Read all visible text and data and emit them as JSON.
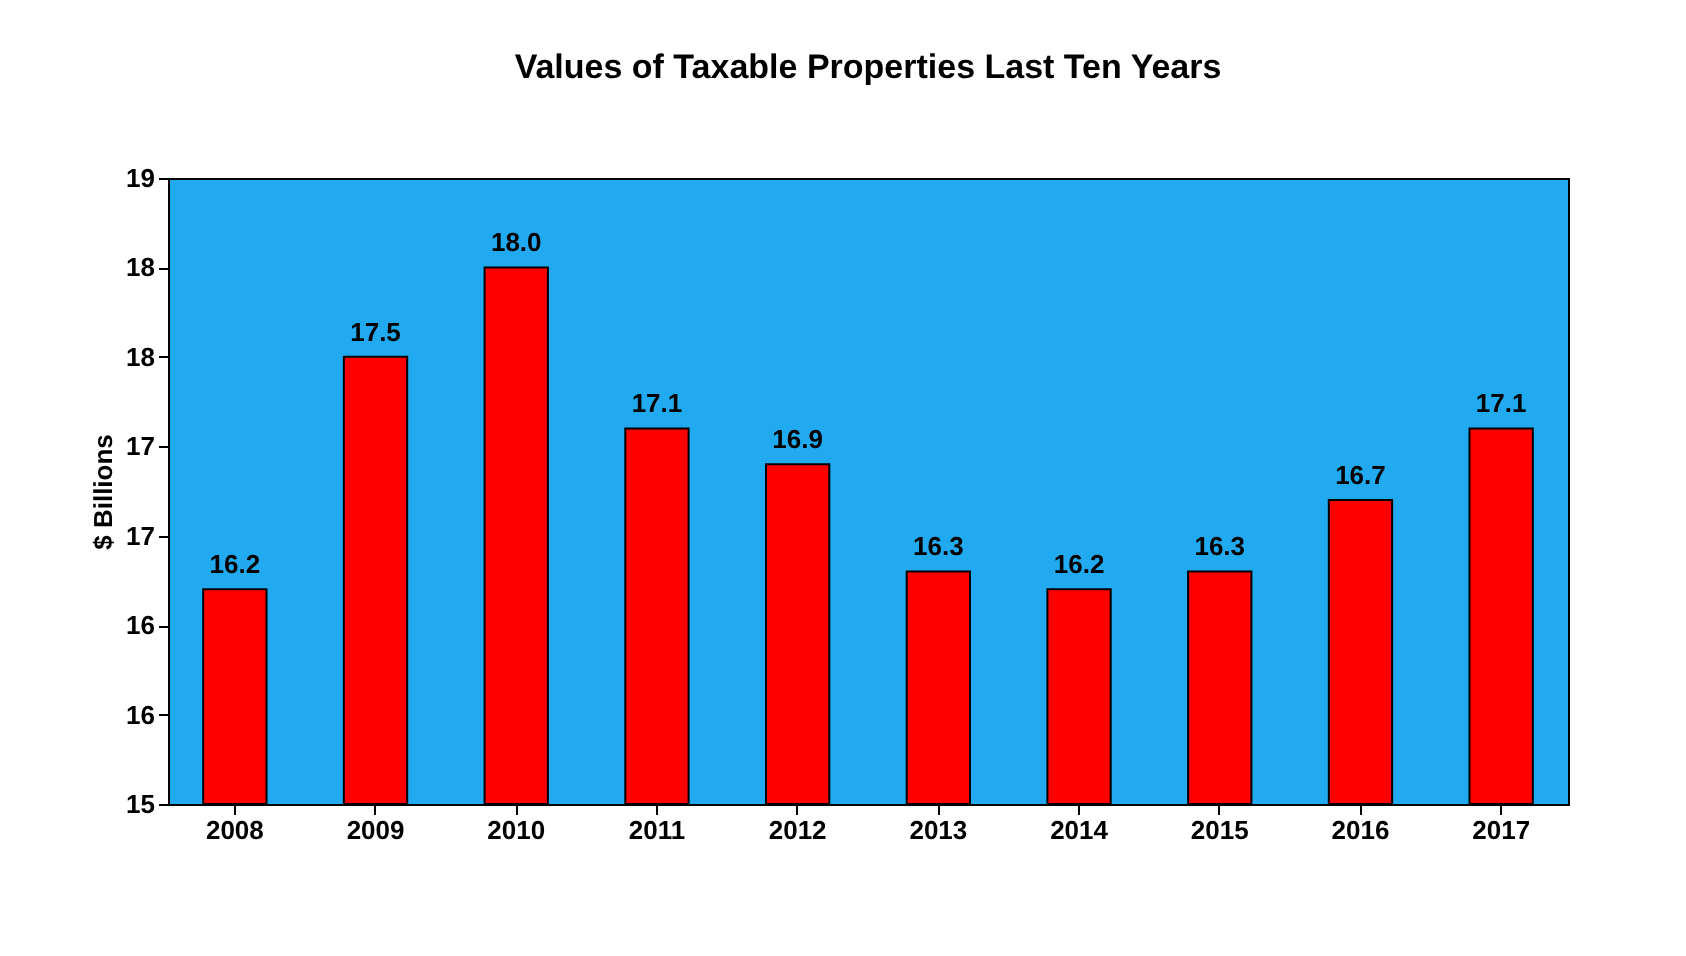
{
  "chart_data": {
    "type": "bar",
    "title": "Values of Taxable Properties Last Ten Years",
    "ylabel": "$ Billions",
    "categories": [
      "2008",
      "2009",
      "2010",
      "2011",
      "2012",
      "2013",
      "2014",
      "2015",
      "2016",
      "2017"
    ],
    "values": [
      16.2,
      17.5,
      18.0,
      17.1,
      16.9,
      16.3,
      16.2,
      16.3,
      16.7,
      17.1
    ],
    "color": "#ff0000",
    "value_labels": [
      "16.2",
      "17.5",
      "18.0",
      "17.1",
      "16.9",
      "16.3",
      "16.2",
      "16.3",
      "16.7",
      "17.1"
    ],
    "ylim": [
      15,
      18.5
    ],
    "yticks": [
      {
        "value": 15,
        "label": "15"
      },
      {
        "value": 15.5,
        "label": "16"
      },
      {
        "value": 16,
        "label": "16"
      },
      {
        "value": 16.5,
        "label": "17"
      },
      {
        "value": 17,
        "label": "17"
      },
      {
        "value": 17.5,
        "label": "18"
      },
      {
        "value": 18,
        "label": "18"
      },
      {
        "value": 18.5,
        "label": "19"
      }
    ]
  }
}
